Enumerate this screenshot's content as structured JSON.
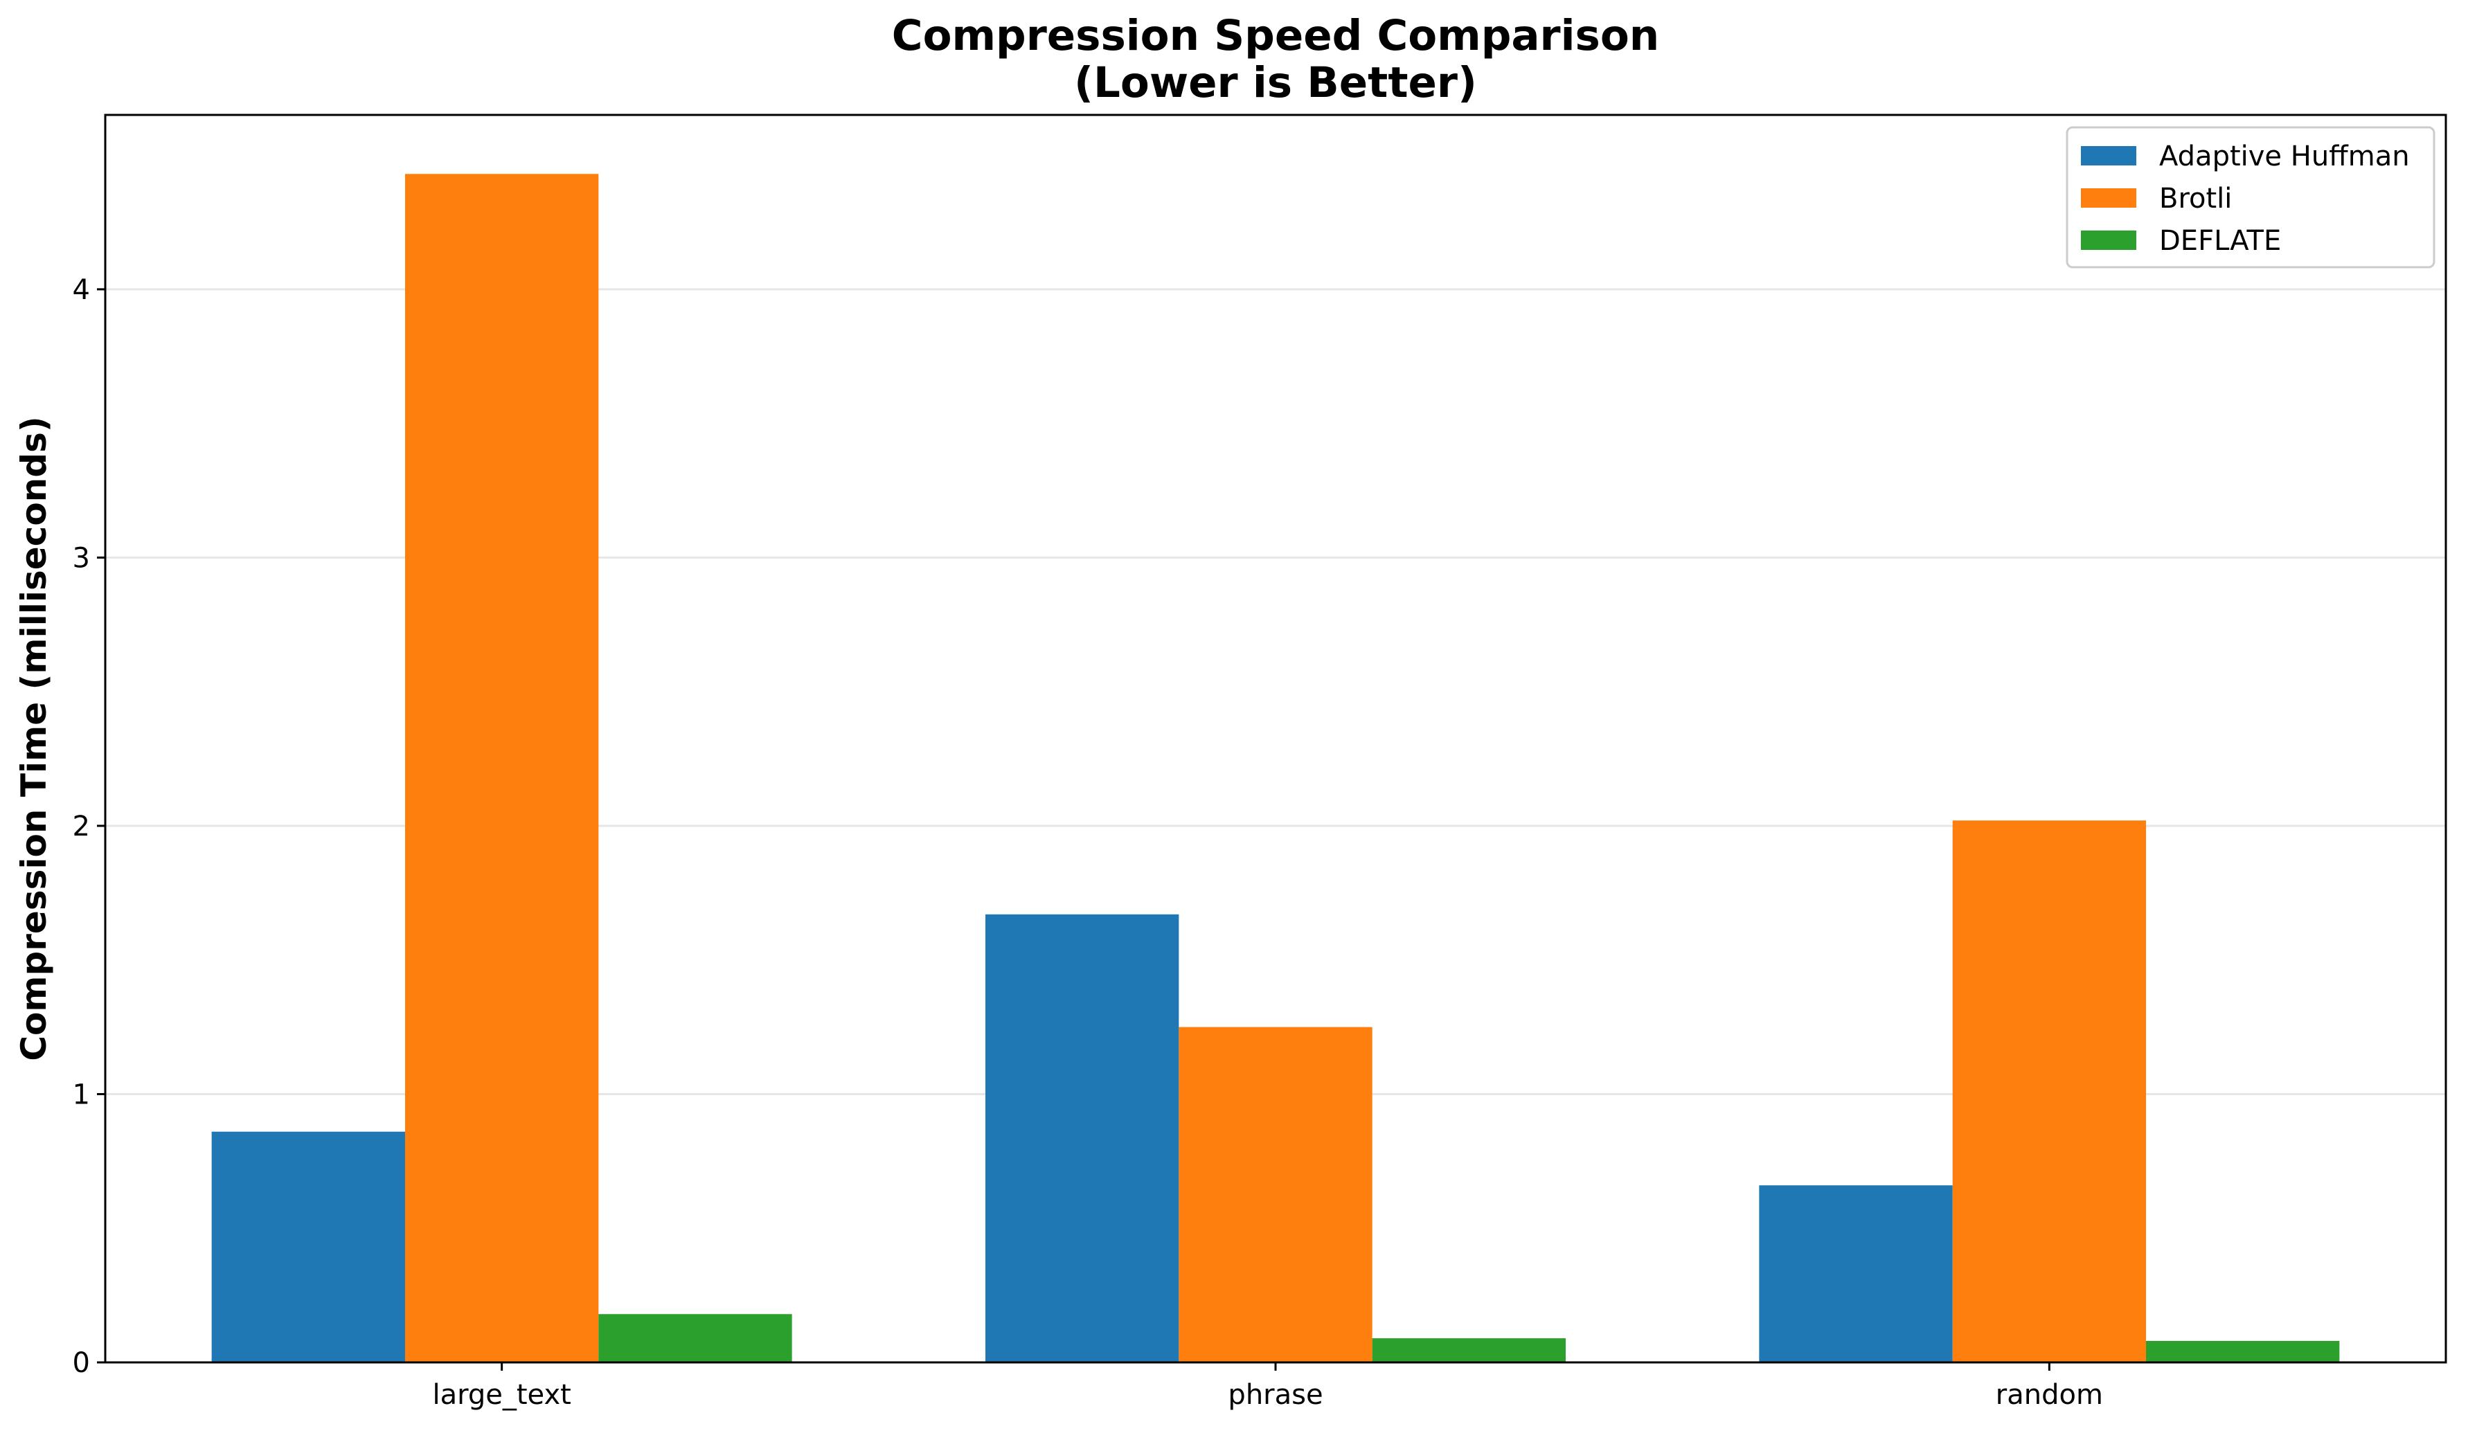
{
  "chart_data": {
    "type": "bar",
    "title": "Compression Speed Comparison",
    "subtitle": "(Lower is Better)",
    "xlabel": "",
    "ylabel": "Compression Time (milliseconds)",
    "categories": [
      "large_text",
      "phrase",
      "random"
    ],
    "series": [
      {
        "name": "Adaptive Huffman",
        "color": "#1f77b4",
        "values": [
          0.86,
          1.67,
          0.66
        ]
      },
      {
        "name": "Brotli",
        "color": "#ff7f0e",
        "values": [
          4.43,
          1.25,
          2.02
        ]
      },
      {
        "name": "DEFLATE",
        "color": "#2ca02c",
        "values": [
          0.18,
          0.09,
          0.08
        ]
      }
    ],
    "ylim": [
      0,
      4.65
    ],
    "yticks": [
      0,
      1,
      2,
      3,
      4
    ],
    "grid": true,
    "legend_position": "top-right"
  }
}
